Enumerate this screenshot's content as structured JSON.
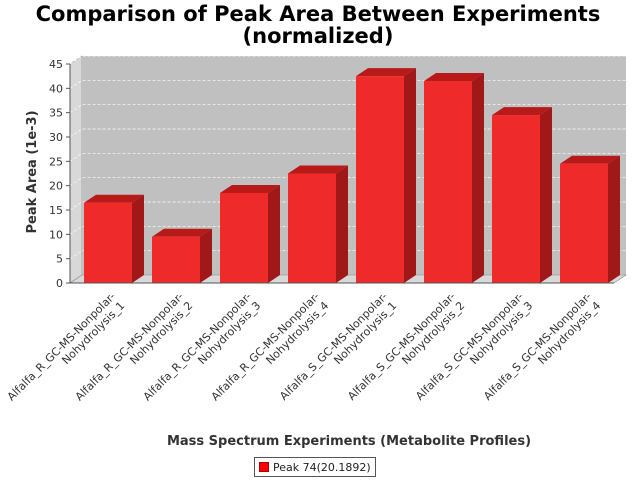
{
  "chart_data": {
    "type": "bar",
    "title": "Comparison of Peak Area Between Experiments",
    "subtitle": "(normalized)",
    "xlabel": "Mass Spectrum Experiments (Metabolite Profiles)",
    "ylabel": "Peak Area (1e-3)",
    "ylim": [
      0,
      45
    ],
    "yticks": [
      0,
      5,
      10,
      15,
      20,
      25,
      30,
      35,
      40,
      45
    ],
    "grid": true,
    "legend_position": "bottom-center",
    "categories": [
      [
        "Alfalfa_R_GC-MS-Nonpolar-",
        "Nohydrolysis_1"
      ],
      [
        "Alfalfa_R_GC-MS-Nonpolar-",
        "Nohydrolysis_2"
      ],
      [
        "Alfalfa_R_GC-MS-Nonpolar-",
        "Nohydrolysis_3"
      ],
      [
        "Alfalfa_R_GC-MS-Nonpolar-",
        "Nohydrolysis_4"
      ],
      [
        "Alfalfa_S_GC-MS-Nonpolar-",
        "Nohydrolysis_1"
      ],
      [
        "Alfalfa_S_GC-MS-Nonpolar-",
        "Nohydrolysis_2"
      ],
      [
        "Alfalfa_S_GC-MS-Nonpolar-",
        "Nohydrolysis_3"
      ],
      [
        "Alfalfa_S_GC-MS-Nonpolar-",
        "Nohydrolysis_4"
      ]
    ],
    "series": [
      {
        "name": "Peak 74(20.1892)",
        "color": "#ff0000",
        "values": [
          16.5,
          9.5,
          18.5,
          22.5,
          42.5,
          41.5,
          34.5,
          24.5
        ]
      }
    ]
  }
}
